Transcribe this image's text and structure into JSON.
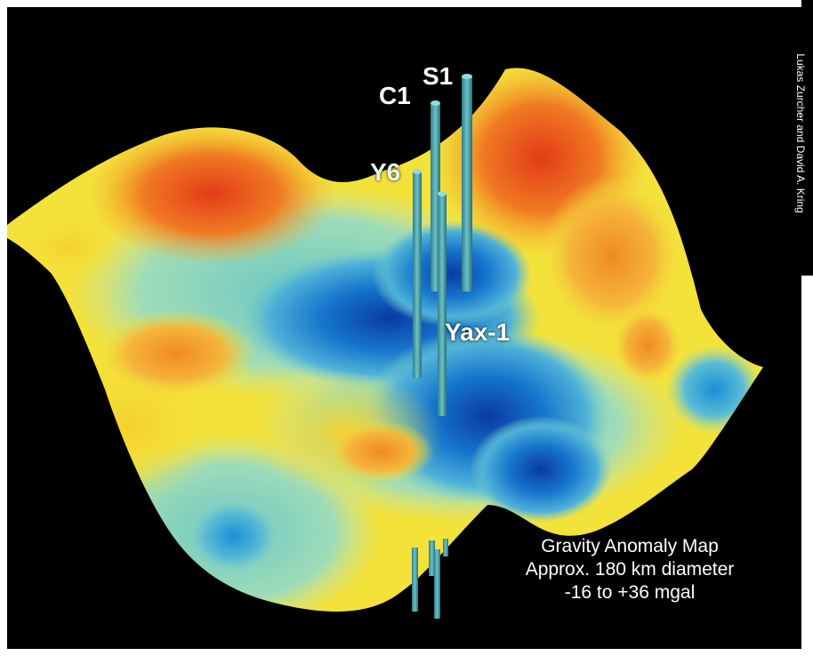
{
  "map": {
    "title_lines": [
      "Gravity Anomaly Map",
      "Approx. 180 km diameter",
      "-16 to +36 mgal"
    ],
    "credit": "Lukas Zurcher and David A. Kring",
    "wells": [
      {
        "label": "S1"
      },
      {
        "label": "C1"
      },
      {
        "label": "Y6"
      },
      {
        "label": "Yax-1"
      }
    ],
    "colors": {
      "background": "#000000",
      "high": "#e8401a",
      "mid_high": "#f5a623",
      "mid": "#f3e23a",
      "mid_low": "#7ecfbf",
      "low": "#1a8fd6",
      "lowest": "#0b3fa8",
      "well": "#4aa6b0"
    }
  }
}
